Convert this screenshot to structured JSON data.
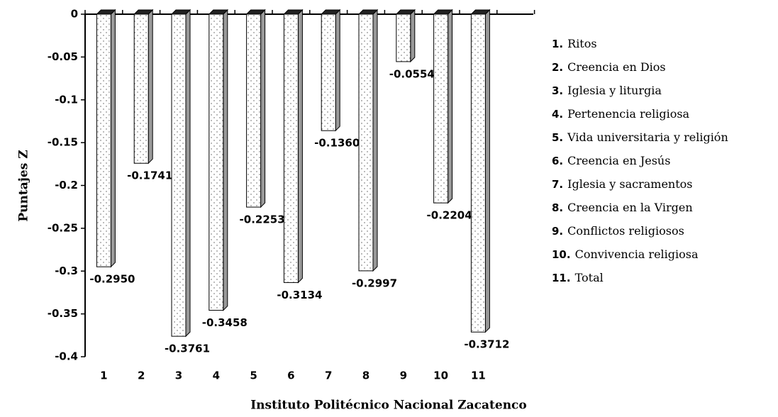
{
  "chart_data": {
    "type": "bar",
    "categories": [
      "1",
      "2",
      "3",
      "4",
      "5",
      "6",
      "7",
      "8",
      "9",
      "10",
      "11"
    ],
    "values": [
      -0.295,
      -0.1741,
      -0.3761,
      -0.3458,
      -0.2253,
      -0.3134,
      -0.136,
      -0.2997,
      -0.0554,
      -0.2204,
      -0.3712
    ],
    "value_labels": [
      "-0.2950",
      "-0.1741",
      "-0.3761",
      "-0.3458",
      "-0.2253",
      "-0.3134",
      "-0.1360",
      "-0.2997",
      "-0.0554",
      "-0.2204",
      "-0.3712"
    ],
    "ylim": [
      -0.4,
      0
    ],
    "yticks": [
      0,
      -0.05,
      -0.1,
      -0.15,
      -0.2,
      -0.25,
      -0.3,
      -0.35,
      -0.4
    ],
    "ylabel": "Puntajes Z",
    "xlabel": "Instituto Politécnico Nacional Zacatenco",
    "color": "#ffffff",
    "legend": [
      {
        "number": "1.",
        "label": "Ritos"
      },
      {
        "number": "2.",
        "label": "Creencia en Dios"
      },
      {
        "number": "3.",
        "label": "Iglesia y liturgia"
      },
      {
        "number": "4.",
        "label": "Pertenencia religiosa"
      },
      {
        "number": "5.",
        "label": "Vida universitaria y religión"
      },
      {
        "number": "6.",
        "label": "Creencia en Jesús"
      },
      {
        "number": "7.",
        "label": "Iglesia y sacramentos"
      },
      {
        "number": "8.",
        "label": "Creencia en la Virgen"
      },
      {
        "number": "9.",
        "label": "Conflictos religiosos"
      },
      {
        "number": "10.",
        "label": "Convivencia religiosa"
      },
      {
        "number": "11.",
        "label": "Total"
      }
    ]
  }
}
